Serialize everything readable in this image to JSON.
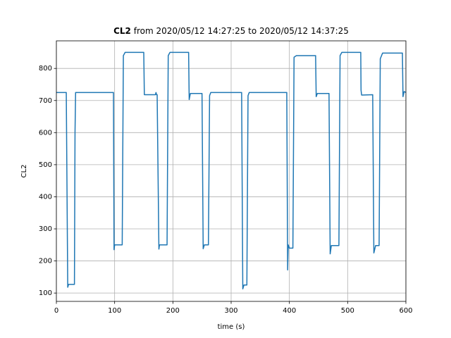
{
  "chart_data": {
    "type": "line",
    "title": {
      "bold": "CL2",
      "rest": "from 2020/05/12 14:27:25 to 2020/05/12 14:37:25"
    },
    "xlabel": "time (s)",
    "ylabel": "CL2",
    "xlim": [
      0,
      600
    ],
    "ylim": [
      74,
      886
    ],
    "xticks": [
      0,
      100,
      200,
      300,
      400,
      500,
      600
    ],
    "yticks": [
      100,
      200,
      300,
      400,
      500,
      600,
      700,
      800
    ],
    "grid": true,
    "series": [
      {
        "name": "CL2",
        "color": "#1f77b4",
        "x": [
          0,
          17,
          19.5,
          21,
          31,
          32,
          33,
          98,
          99,
          100,
          113,
          115,
          118,
          150,
          151,
          170,
          171,
          172,
          173,
          176,
          177,
          190,
          192,
          195,
          227,
          228,
          230,
          250,
          252,
          254,
          261,
          263,
          265,
          318,
          320,
          322,
          327,
          329,
          331,
          395.5,
          397,
          398,
          400,
          406,
          408,
          412,
          445,
          446,
          448,
          468,
          470,
          472,
          485,
          487,
          490,
          522.5,
          523,
          524,
          543,
          545,
          548,
          554,
          556,
          560,
          594,
          595,
          597,
          600
        ],
        "values": [
          725,
          725,
          118,
          127,
          127,
          600,
          725,
          725,
          235,
          250,
          250,
          840,
          850,
          850,
          718,
          718,
          725,
          718,
          718,
          237,
          250,
          250,
          840,
          850,
          850,
          703,
          722,
          722,
          238,
          250,
          250,
          715,
          725,
          725,
          113,
          125,
          125,
          715,
          725,
          725,
          172,
          250,
          240,
          240,
          835,
          840,
          840,
          712,
          722,
          722,
          222,
          248,
          248,
          840,
          850,
          850,
          732,
          717,
          718,
          225,
          248,
          248,
          830,
          848,
          848,
          712,
          728,
          725
        ]
      }
    ]
  }
}
